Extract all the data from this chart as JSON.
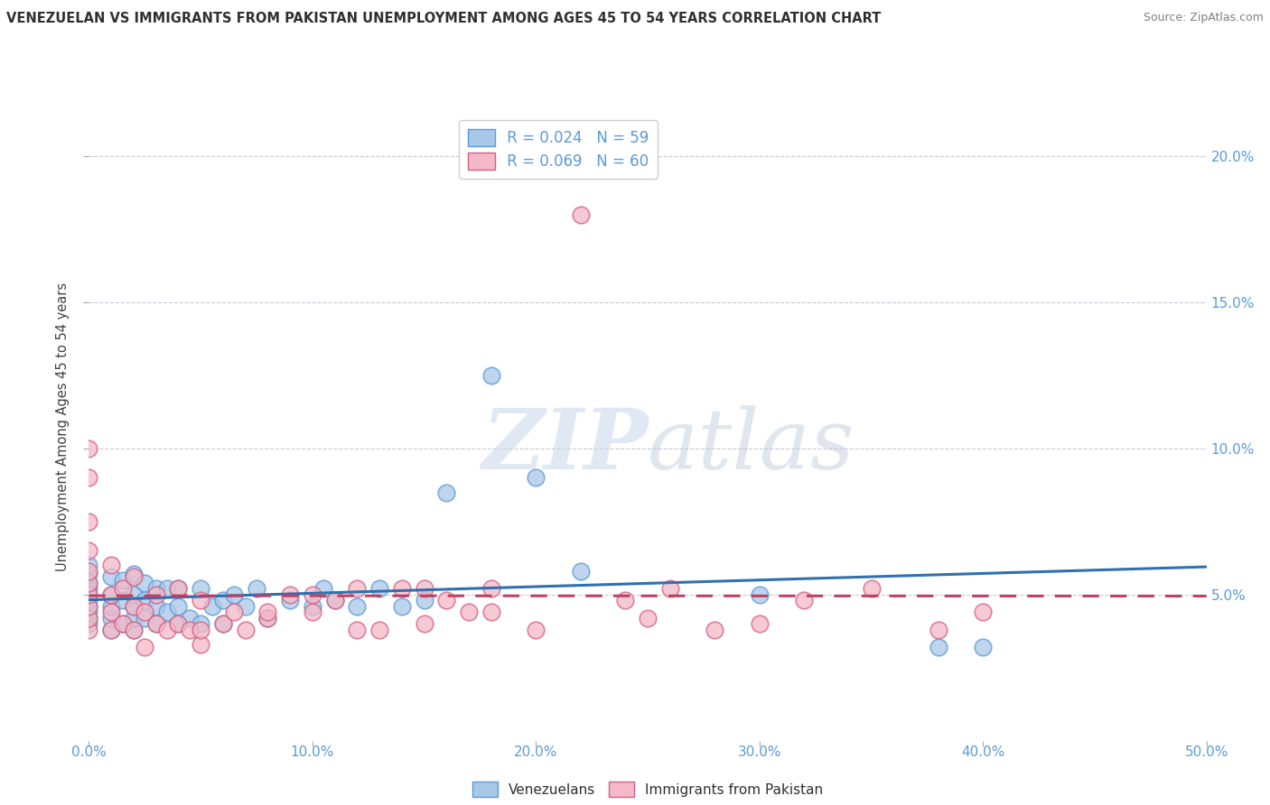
{
  "title": "VENEZUELAN VS IMMIGRANTS FROM PAKISTAN UNEMPLOYMENT AMONG AGES 45 TO 54 YEARS CORRELATION CHART",
  "source": "Source: ZipAtlas.com",
  "ylabel": "Unemployment Among Ages 45 to 54 years",
  "xlim": [
    0,
    0.5
  ],
  "ylim": [
    0.0,
    0.215
  ],
  "yticks": [
    0.05,
    0.1,
    0.15,
    0.2
  ],
  "ytick_labels": [
    "5.0%",
    "10.0%",
    "15.0%",
    "20.0%"
  ],
  "xtick_vals": [
    0.0,
    0.1,
    0.2,
    0.3,
    0.4,
    0.5
  ],
  "xtick_labels": [
    "0.0%",
    "10.0%",
    "20.0%",
    "30.0%",
    "40.0%",
    "50.0%"
  ],
  "watermark_zip": "ZIP",
  "watermark_atlas": "atlas",
  "legend_R1": "R = 0.024",
  "legend_N1": "N = 59",
  "legend_R2": "R = 0.069",
  "legend_N2": "N = 60",
  "color_blue": "#a8c8e8",
  "color_pink": "#f4b8c8",
  "edge_blue": "#5b9bd5",
  "edge_pink": "#d46080",
  "trendline_blue": "#3070b0",
  "trendline_pink": "#c04060",
  "grid_color": "#c8c8d8",
  "title_color": "#303030",
  "axis_color": "#5b9bd5",
  "source_color": "#808080",
  "venezuelans_x": [
    0.0,
    0.0,
    0.0,
    0.0,
    0.0,
    0.0,
    0.0,
    0.0,
    0.0,
    0.0,
    0.01,
    0.01,
    0.01,
    0.01,
    0.01,
    0.015,
    0.015,
    0.015,
    0.02,
    0.02,
    0.02,
    0.02,
    0.02,
    0.025,
    0.025,
    0.025,
    0.03,
    0.03,
    0.03,
    0.035,
    0.035,
    0.04,
    0.04,
    0.04,
    0.045,
    0.05,
    0.05,
    0.055,
    0.06,
    0.06,
    0.065,
    0.07,
    0.075,
    0.08,
    0.09,
    0.1,
    0.105,
    0.11,
    0.12,
    0.13,
    0.14,
    0.15,
    0.16,
    0.18,
    0.2,
    0.22,
    0.3,
    0.38,
    0.4
  ],
  "venezuelans_y": [
    0.04,
    0.042,
    0.044,
    0.046,
    0.048,
    0.05,
    0.052,
    0.054,
    0.057,
    0.06,
    0.038,
    0.042,
    0.046,
    0.05,
    0.056,
    0.04,
    0.048,
    0.055,
    0.038,
    0.042,
    0.046,
    0.05,
    0.057,
    0.042,
    0.048,
    0.054,
    0.04,
    0.046,
    0.052,
    0.044,
    0.052,
    0.04,
    0.046,
    0.052,
    0.042,
    0.04,
    0.052,
    0.046,
    0.04,
    0.048,
    0.05,
    0.046,
    0.052,
    0.042,
    0.048,
    0.046,
    0.052,
    0.048,
    0.046,
    0.052,
    0.046,
    0.048,
    0.085,
    0.125,
    0.09,
    0.058,
    0.05,
    0.032,
    0.032
  ],
  "pakistan_x": [
    0.0,
    0.0,
    0.0,
    0.0,
    0.0,
    0.0,
    0.0,
    0.0,
    0.0,
    0.0,
    0.01,
    0.01,
    0.01,
    0.01,
    0.015,
    0.015,
    0.02,
    0.02,
    0.02,
    0.025,
    0.025,
    0.03,
    0.03,
    0.035,
    0.04,
    0.04,
    0.045,
    0.05,
    0.05,
    0.06,
    0.065,
    0.07,
    0.08,
    0.09,
    0.1,
    0.11,
    0.12,
    0.13,
    0.14,
    0.15,
    0.16,
    0.17,
    0.18,
    0.2,
    0.22,
    0.24,
    0.25,
    0.26,
    0.28,
    0.3,
    0.32,
    0.35,
    0.38,
    0.4,
    0.05,
    0.08,
    0.1,
    0.12,
    0.15,
    0.18
  ],
  "pakistan_y": [
    0.038,
    0.042,
    0.046,
    0.05,
    0.054,
    0.058,
    0.065,
    0.075,
    0.09,
    0.1,
    0.038,
    0.044,
    0.05,
    0.06,
    0.04,
    0.052,
    0.038,
    0.046,
    0.056,
    0.032,
    0.044,
    0.04,
    0.05,
    0.038,
    0.04,
    0.052,
    0.038,
    0.033,
    0.048,
    0.04,
    0.044,
    0.038,
    0.042,
    0.05,
    0.044,
    0.048,
    0.052,
    0.038,
    0.052,
    0.04,
    0.048,
    0.044,
    0.052,
    0.038,
    0.18,
    0.048,
    0.042,
    0.052,
    0.038,
    0.04,
    0.048,
    0.052,
    0.038,
    0.044,
    0.038,
    0.044,
    0.05,
    0.038,
    0.052,
    0.044
  ]
}
